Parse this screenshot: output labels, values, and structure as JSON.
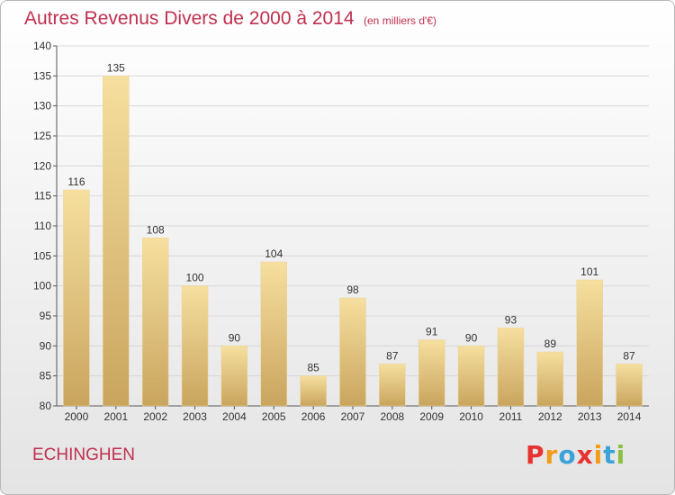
{
  "header": {
    "title": "Autres Revenus Divers de 2000 à 2014",
    "subtitle": "(en milliers d'€)"
  },
  "footer": {
    "commune": "ECHINGHEN",
    "brand": "Proxiti",
    "brand_colors": [
      "#e8322f",
      "#f39b1a",
      "#3aa2d8",
      "#e8322f",
      "#f39b1a",
      "#3aa2d8",
      "#8bbf3f"
    ]
  },
  "colors": {
    "title": "#c0304f",
    "bar_light": "#f5dc9a",
    "bar_dark": "#c8a45c",
    "grid": "#d8d8d8"
  },
  "chart_data": {
    "type": "bar",
    "title": "Autres Revenus Divers de 2000 à 2014",
    "subtitle": "(en milliers d'€)",
    "categories": [
      "2000",
      "2001",
      "2002",
      "2003",
      "2004",
      "2005",
      "2006",
      "2007",
      "2008",
      "2009",
      "2010",
      "2011",
      "2012",
      "2013",
      "2014"
    ],
    "values": [
      116,
      135,
      108,
      100,
      90,
      104,
      85,
      98,
      87,
      91,
      90,
      93,
      89,
      101,
      87
    ],
    "ylim": [
      80,
      140
    ],
    "yticks": [
      80,
      85,
      90,
      95,
      100,
      105,
      110,
      115,
      120,
      125,
      130,
      135,
      140
    ],
    "grid": true
  }
}
